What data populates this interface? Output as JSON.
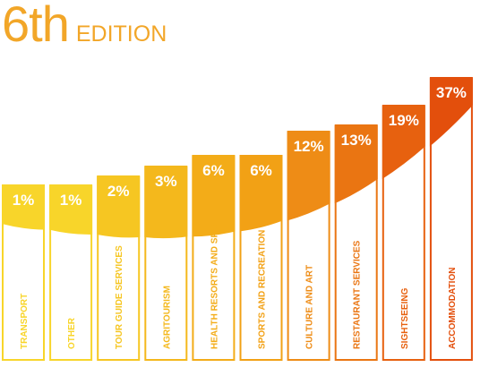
{
  "header": {
    "edition_number": "6th",
    "edition_word": "EDITION"
  },
  "chart_data": {
    "type": "bar",
    "title": "6th EDITION",
    "xlabel": "",
    "ylabel": "",
    "categories": [
      "TRANSPORT",
      "OTHER",
      "TOUR GUIDE SERVICES",
      "AGRITOURISM",
      "HEALTH RESORTS AND SPAS",
      "SPORTS AND RECREATION",
      "CULTURE AND ART",
      "RESTAURANT SERVICES",
      "SIGHTSEEING",
      "ACCOMMODATION"
    ],
    "values": [
      1,
      1,
      2,
      3,
      6,
      6,
      12,
      13,
      19,
      37
    ],
    "value_labels": [
      "1%",
      "1%",
      "2%",
      "3%",
      "6%",
      "6%",
      "12%",
      "13%",
      "19%",
      "37%"
    ],
    "colors": [
      "#f8d52a",
      "#f8d52a",
      "#f6c622",
      "#f4b81c",
      "#f3ac18",
      "#f2a115",
      "#ee8c16",
      "#ea7512",
      "#e7610f",
      "#e34f0c"
    ],
    "grid": false,
    "legend": "none"
  }
}
